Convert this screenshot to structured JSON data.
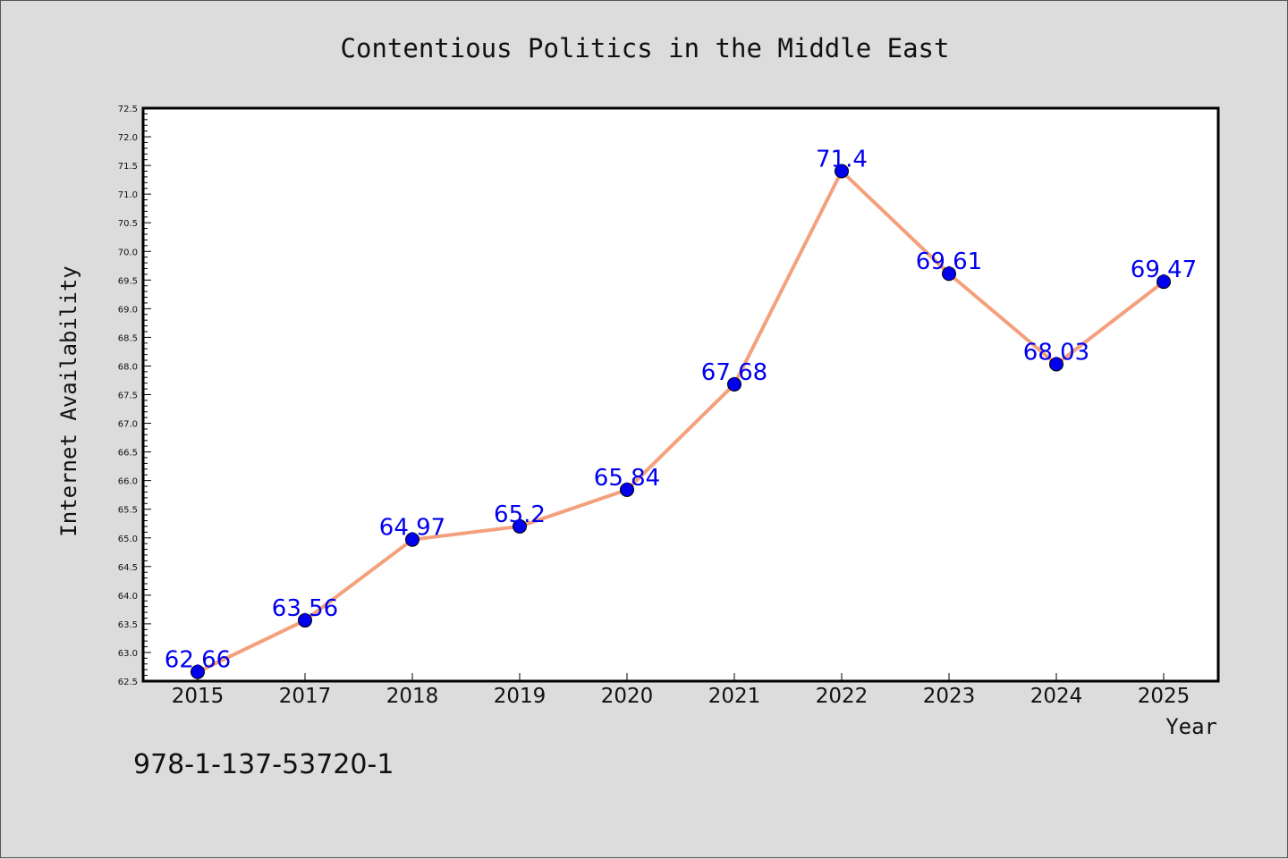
{
  "chart_data": {
    "type": "line",
    "title": "Contentious Politics in the Middle East",
    "xlabel": "Year",
    "ylabel": "Internet Availability",
    "categories": [
      "2015",
      "2017",
      "2018",
      "2019",
      "2020",
      "2021",
      "2022",
      "2023",
      "2024",
      "2025"
    ],
    "series": [
      {
        "values": [
          62.66,
          63.56,
          64.97,
          65.2,
          65.84,
          67.68,
          71.4,
          69.61,
          68.03,
          69.47
        ],
        "line_color": "#f4a07c",
        "marker_color": "#0000ee"
      }
    ],
    "data_labels": [
      "62.66",
      "63.56",
      "64.97",
      "65.2",
      "65.84",
      "67.68",
      "71.4",
      "69.61",
      "68.03",
      "69.47"
    ],
    "ylim": [
      62.5,
      72.5
    ],
    "yticks": [
      "62.5",
      "63.0",
      "63.5",
      "64.0",
      "64.5",
      "65.0",
      "65.5",
      "66.0",
      "66.5",
      "67.0",
      "67.5",
      "68.0",
      "68.5",
      "69.0",
      "69.5",
      "70.0",
      "70.5",
      "71.0",
      "71.5",
      "72.0",
      "72.5"
    ],
    "grid": false,
    "legend": "none",
    "label_color": "#0000ee"
  },
  "footer": {
    "isbn": "978-1-137-53720-1"
  }
}
